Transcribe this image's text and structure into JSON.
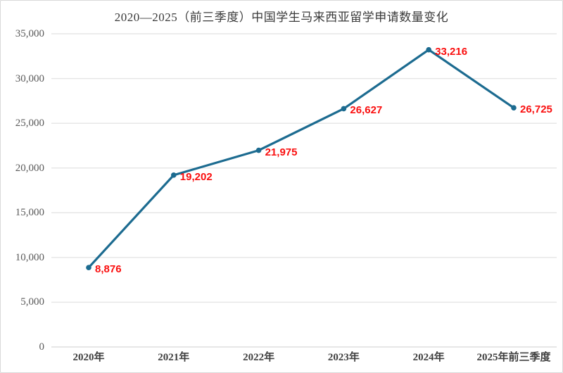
{
  "window": {
    "background": "#ffffff",
    "border_color": "#d9d9d9",
    "gridline_color": "#e5e5e5",
    "baseline_color": "#dedede"
  },
  "chart_data": {
    "type": "line",
    "title": "2020—2025（前三季度）中国学生马来西亚留学申请数量变化",
    "categories": [
      "2020年",
      "2021年",
      "2022年",
      "2023年",
      "2024年",
      "2025年前三季度"
    ],
    "values": [
      8876,
      19202,
      21975,
      26627,
      33216,
      26725
    ],
    "value_labels": [
      "8,876",
      "19,202",
      "21,975",
      "26,627",
      "33,216",
      "26,725"
    ],
    "xlabel": "",
    "ylabel": "",
    "ylim": [
      0,
      35000
    ],
    "ytick_interval": 5000,
    "ytick_labels": [
      "0",
      "5,000",
      "10,000",
      "15,000",
      "20,000",
      "25,000",
      "30,000",
      "35,000"
    ],
    "grid": true,
    "legend": "none",
    "line_color": "#1c6b90",
    "marker_color": "#1c6b90",
    "data_label_color": "#fa0f0f",
    "title_color": "#3a3a3a",
    "ytick_text_color": "#595959",
    "xtick_text_color": "#3f3f3f"
  }
}
